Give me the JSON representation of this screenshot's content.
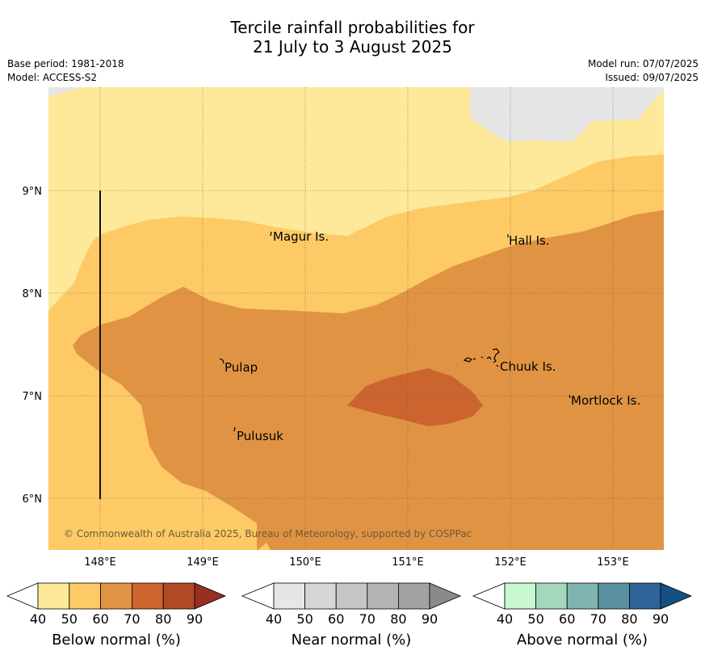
{
  "title": {
    "line1": "Tercile rainfall probabilities for",
    "line2": "21 July to 3 August 2025"
  },
  "meta": {
    "base_period": "Base period: 1981-2018",
    "model": "Model: ACCESS-S2",
    "model_run": "Model run: 07/07/2025",
    "issued": "Issued: 09/07/2025"
  },
  "map": {
    "longitude_ticks": [
      "148°E",
      "149°E",
      "150°E",
      "151°E",
      "152°E",
      "153°E"
    ],
    "latitude_ticks": [
      "9°N",
      "8°N",
      "7°N",
      "6°N"
    ],
    "place_labels": {
      "magur": "Magur Is.",
      "hall": "Hall Is.",
      "pulap": "Pulap",
      "chuuk": "Chuuk Is.",
      "mortlock": "Mortlock Is.",
      "pulusuk": "Pulusuk"
    },
    "copyright": "© Commonwealth of Australia 2025, Bureau of Meteorology, supported by COSPPac",
    "fill_colors": {
      "below_40_50": "#fee89a",
      "below_50_60": "#fdca66",
      "below_60_70": "#e09443",
      "below_70_80": "#cc6430",
      "land_mask": "#e6e6e6"
    }
  },
  "colorbars": [
    {
      "label": "Below normal (%)",
      "ticks": [
        "40",
        "50",
        "60",
        "70",
        "80",
        "90"
      ],
      "colors": [
        "#ffffff",
        "#fee89a",
        "#fdca66",
        "#e09443",
        "#cc6430",
        "#b04a26",
        "#963020"
      ]
    },
    {
      "label": "Near normal (%)",
      "ticks": [
        "40",
        "50",
        "60",
        "70",
        "80",
        "90"
      ],
      "colors": [
        "#ffffff",
        "#e6e6e6",
        "#d6d6d6",
        "#c6c6c6",
        "#b4b4b4",
        "#a2a2a2",
        "#8a8a8a"
      ]
    },
    {
      "label": "Above normal (%)",
      "ticks": [
        "40",
        "50",
        "60",
        "70",
        "80",
        "90"
      ],
      "colors": [
        "#ffffff",
        "#c8f7d0",
        "#a3d8bd",
        "#7fb5b0",
        "#5a92a2",
        "#2f6498",
        "#154f84"
      ]
    }
  ]
}
